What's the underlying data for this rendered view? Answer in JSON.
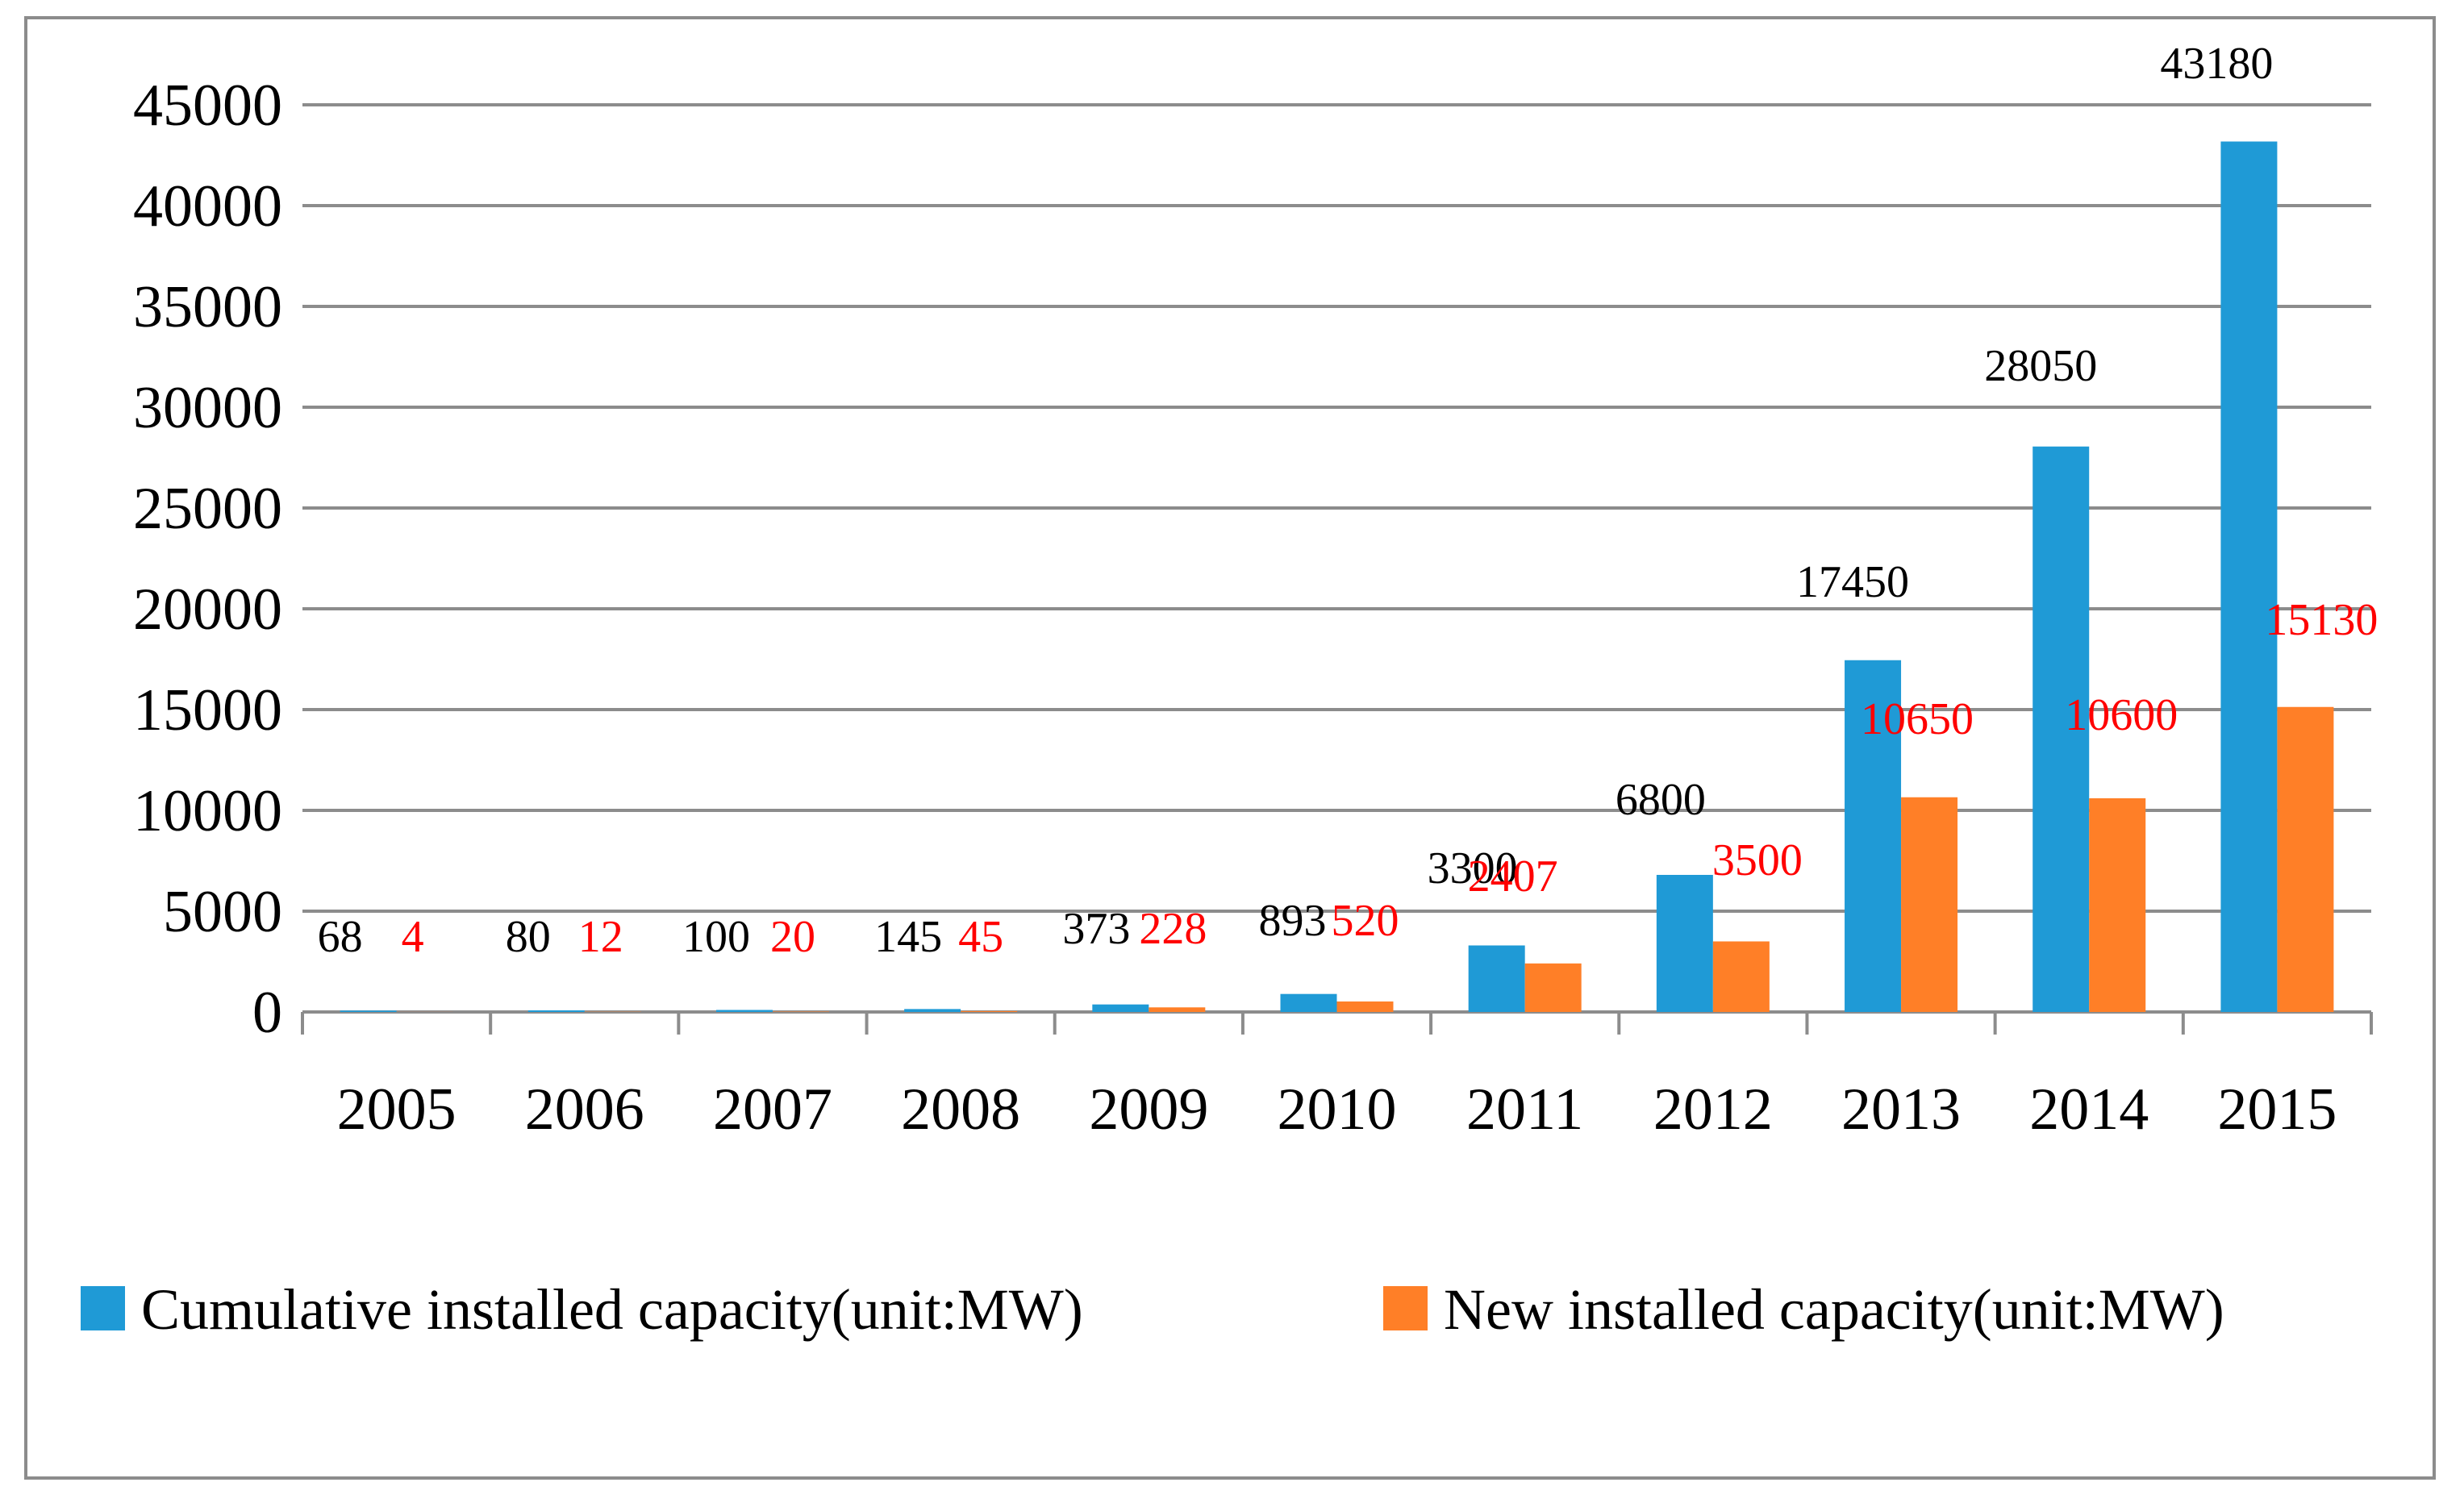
{
  "chart_data": {
    "type": "bar",
    "title": "",
    "xlabel": "",
    "ylabel": "",
    "ylim": [
      0,
      45000
    ],
    "yticks": [
      0,
      5000,
      10000,
      15000,
      20000,
      25000,
      30000,
      35000,
      40000,
      45000
    ],
    "grid": true,
    "legend_position": "bottom",
    "categories": [
      "2005",
      "2006",
      "2007",
      "2008",
      "2009",
      "2010",
      "2011",
      "2012",
      "2013",
      "2014",
      "2015"
    ],
    "series": [
      {
        "name": "Cumulative installed capacity(unit:MW)",
        "color": "#1f9ad6",
        "label_color": "#000000",
        "values": [
          68,
          80,
          100,
          145,
          373,
          893,
          3300,
          6800,
          17450,
          28050,
          43180
        ]
      },
      {
        "name": "New installed capacity(unit:MW)",
        "color": "#ff7f27",
        "label_color": "#ff0000",
        "values": [
          4,
          12,
          20,
          45,
          228,
          520,
          2407,
          3500,
          10650,
          10600,
          15130
        ]
      }
    ]
  }
}
